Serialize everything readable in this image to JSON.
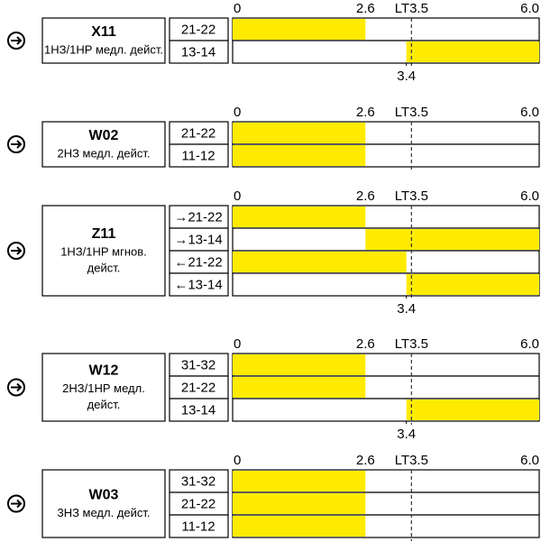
{
  "scale": {
    "range": [
      0,
      6
    ],
    "ticks": [
      0,
      2.6,
      {
        "value": 3.5,
        "label": "LT3.5"
      },
      {
        "value": 6,
        "label": "6.0"
      }
    ]
  },
  "blocks": [
    {
      "code": "X11",
      "description": [
        "1НЗ/1НР медл. дейст."
      ],
      "rows": [
        {
          "label": "21-22",
          "bar": [
            0,
            2.6
          ]
        },
        {
          "label": "13-14",
          "bar": [
            3.4,
            6
          ]
        }
      ],
      "marker": 3.4
    },
    {
      "code": "W02",
      "description": [
        "2НЗ медл. дейст."
      ],
      "rows": [
        {
          "label": "21-22",
          "bar": [
            0,
            2.6
          ]
        },
        {
          "label": "11-12",
          "bar": [
            0,
            2.6
          ]
        }
      ]
    },
    {
      "code": "Z11",
      "description": [
        "1НЗ/1НР мгнов.",
        "дейст."
      ],
      "rows": [
        {
          "label": "→21-22",
          "bar": [
            0,
            2.6
          ]
        },
        {
          "label": "→13-14",
          "bar": [
            2.6,
            6
          ]
        },
        {
          "label": "←21-22",
          "bar": [
            0,
            3.4
          ]
        },
        {
          "label": "←13-14",
          "bar": [
            3.4,
            6
          ]
        }
      ],
      "marker": 3.4
    },
    {
      "code": "W12",
      "description": [
        "2НЗ/1НР медл.",
        "дейст."
      ],
      "rows": [
        {
          "label": "31-32",
          "bar": [
            0,
            2.6
          ]
        },
        {
          "label": "21-22",
          "bar": [
            0,
            2.6
          ]
        },
        {
          "label": "13-14",
          "bar": [
            3.4,
            6
          ]
        }
      ],
      "marker": 3.4
    },
    {
      "code": "W03",
      "description": [
        "3НЗ медл. дейст."
      ],
      "rows": [
        {
          "label": "31-32",
          "bar": [
            0,
            2.6
          ]
        },
        {
          "label": "21-22",
          "bar": [
            0,
            2.6
          ]
        },
        {
          "label": "11-12",
          "bar": [
            0,
            2.6
          ]
        }
      ]
    }
  ]
}
